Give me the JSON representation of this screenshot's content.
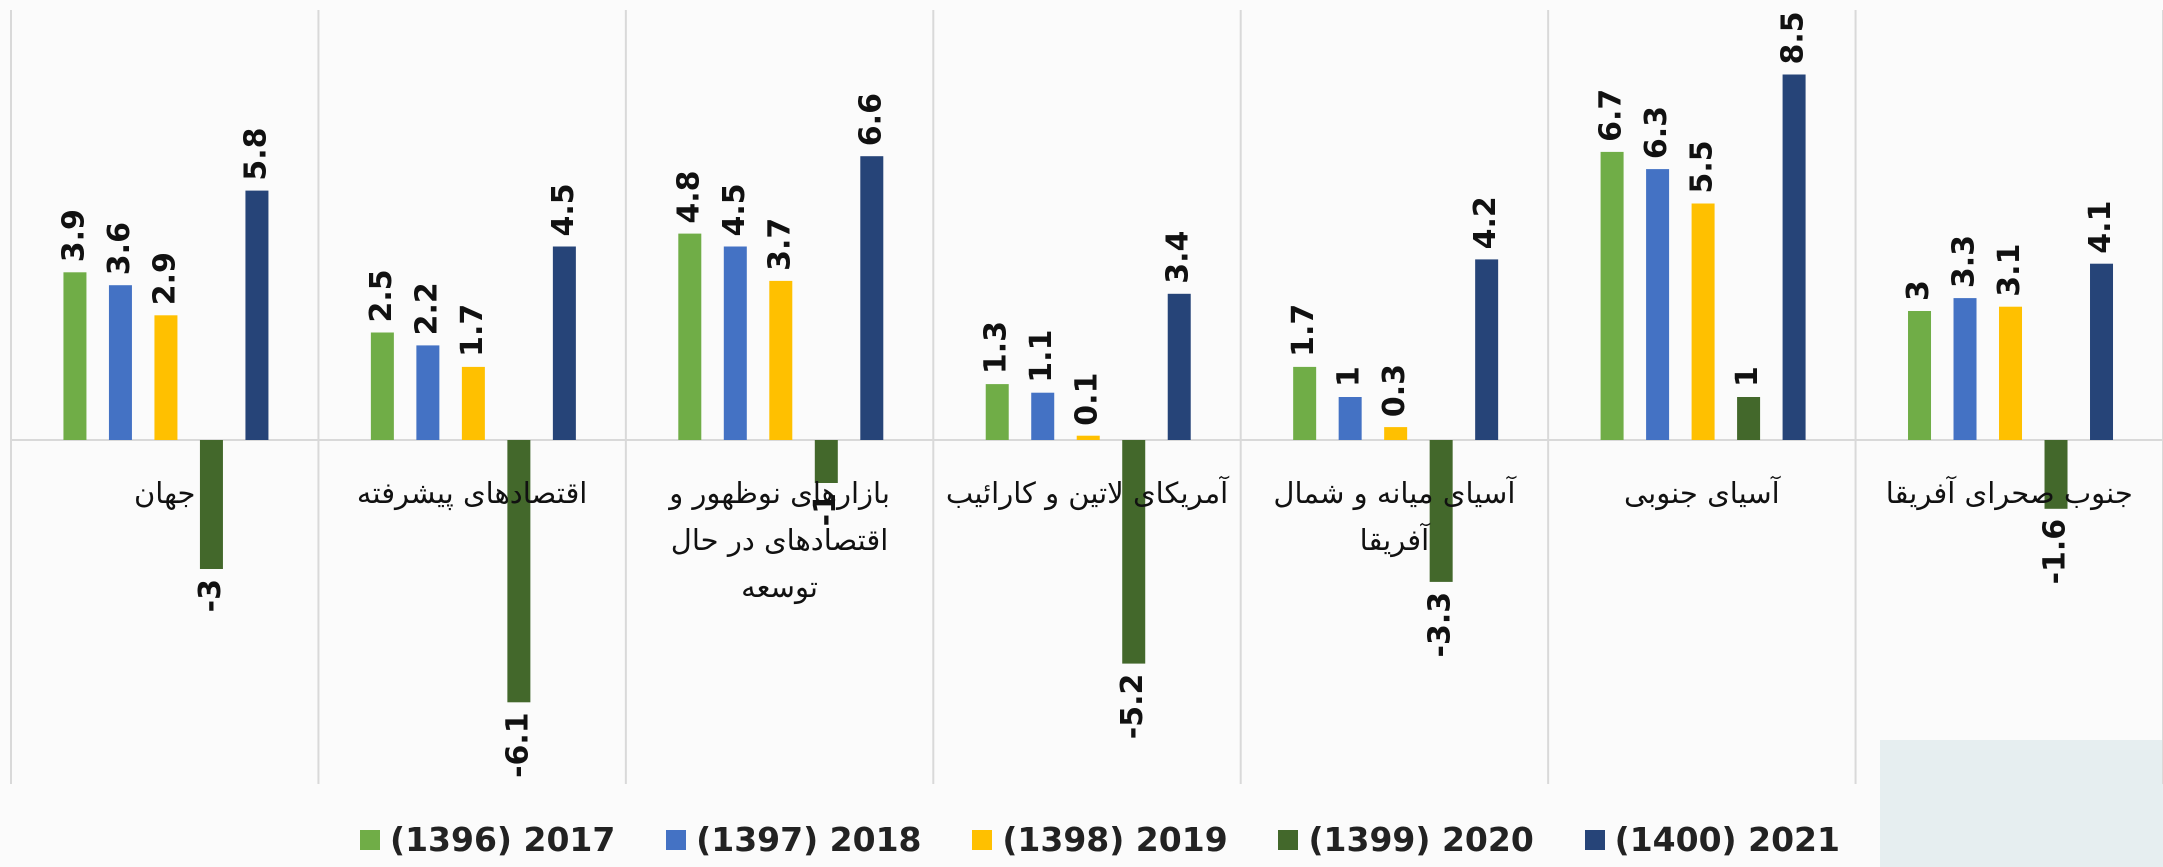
{
  "chart_data": {
    "type": "bar",
    "categories": [
      "جهان",
      "اقتصادهای پیشرفته",
      "بازارهای نوظهور و اقتصادهای در حال توسعه",
      "آمریکای لاتین و کارائیب",
      "آسیای میانه و شمال آفریقا",
      "آسیای جنوبی",
      "جنوب صحرای آفریقا"
    ],
    "series": [
      {
        "name": "(1396) 2017",
        "color": "#70ad47",
        "values": [
          3.9,
          2.5,
          4.8,
          1.3,
          1.7,
          6.7,
          3
        ]
      },
      {
        "name": "(1397) 2018",
        "color": "#4472c4",
        "values": [
          3.6,
          2.2,
          4.5,
          1.1,
          1,
          6.3,
          3.3
        ]
      },
      {
        "name": "(1398) 2019",
        "color": "#ffc000",
        "values": [
          2.9,
          1.7,
          3.7,
          0.1,
          0.3,
          5.5,
          3.1
        ]
      },
      {
        "name": "(1399) 2020",
        "color": "#43682b",
        "values": [
          -3,
          -6.1,
          -1,
          -5.2,
          -3.3,
          1,
          -1.6
        ]
      },
      {
        "name": "(1400) 2021",
        "color": "#264478",
        "values": [
          5.8,
          4.5,
          6.6,
          3.4,
          4.2,
          8.5,
          4.1
        ]
      }
    ],
    "ylim": [
      -8,
      10
    ]
  }
}
